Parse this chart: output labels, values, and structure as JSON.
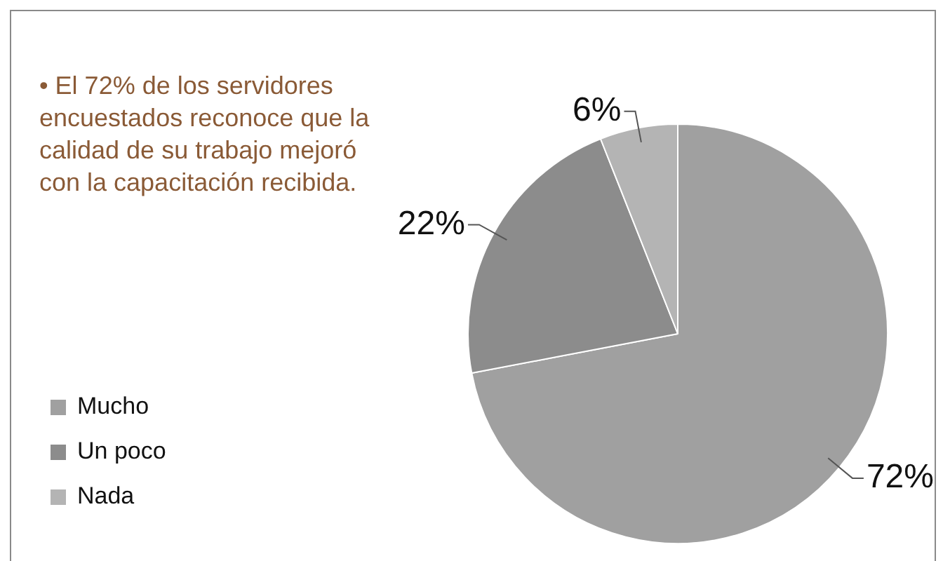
{
  "chart_data": {
    "type": "pie",
    "title": "• El 72% de los servidores encuestados reconoce que la calidad de su trabajo mejoró con la capacitación recibida.",
    "categories": [
      "Mucho",
      "Un poco",
      "Nada"
    ],
    "values": [
      72,
      22,
      6
    ],
    "colors": [
      "#a0a0a0",
      "#8c8c8c",
      "#b4b4b4"
    ],
    "value_labels": [
      "72%",
      "22%",
      "6%"
    ],
    "legend": "bottom left"
  }
}
